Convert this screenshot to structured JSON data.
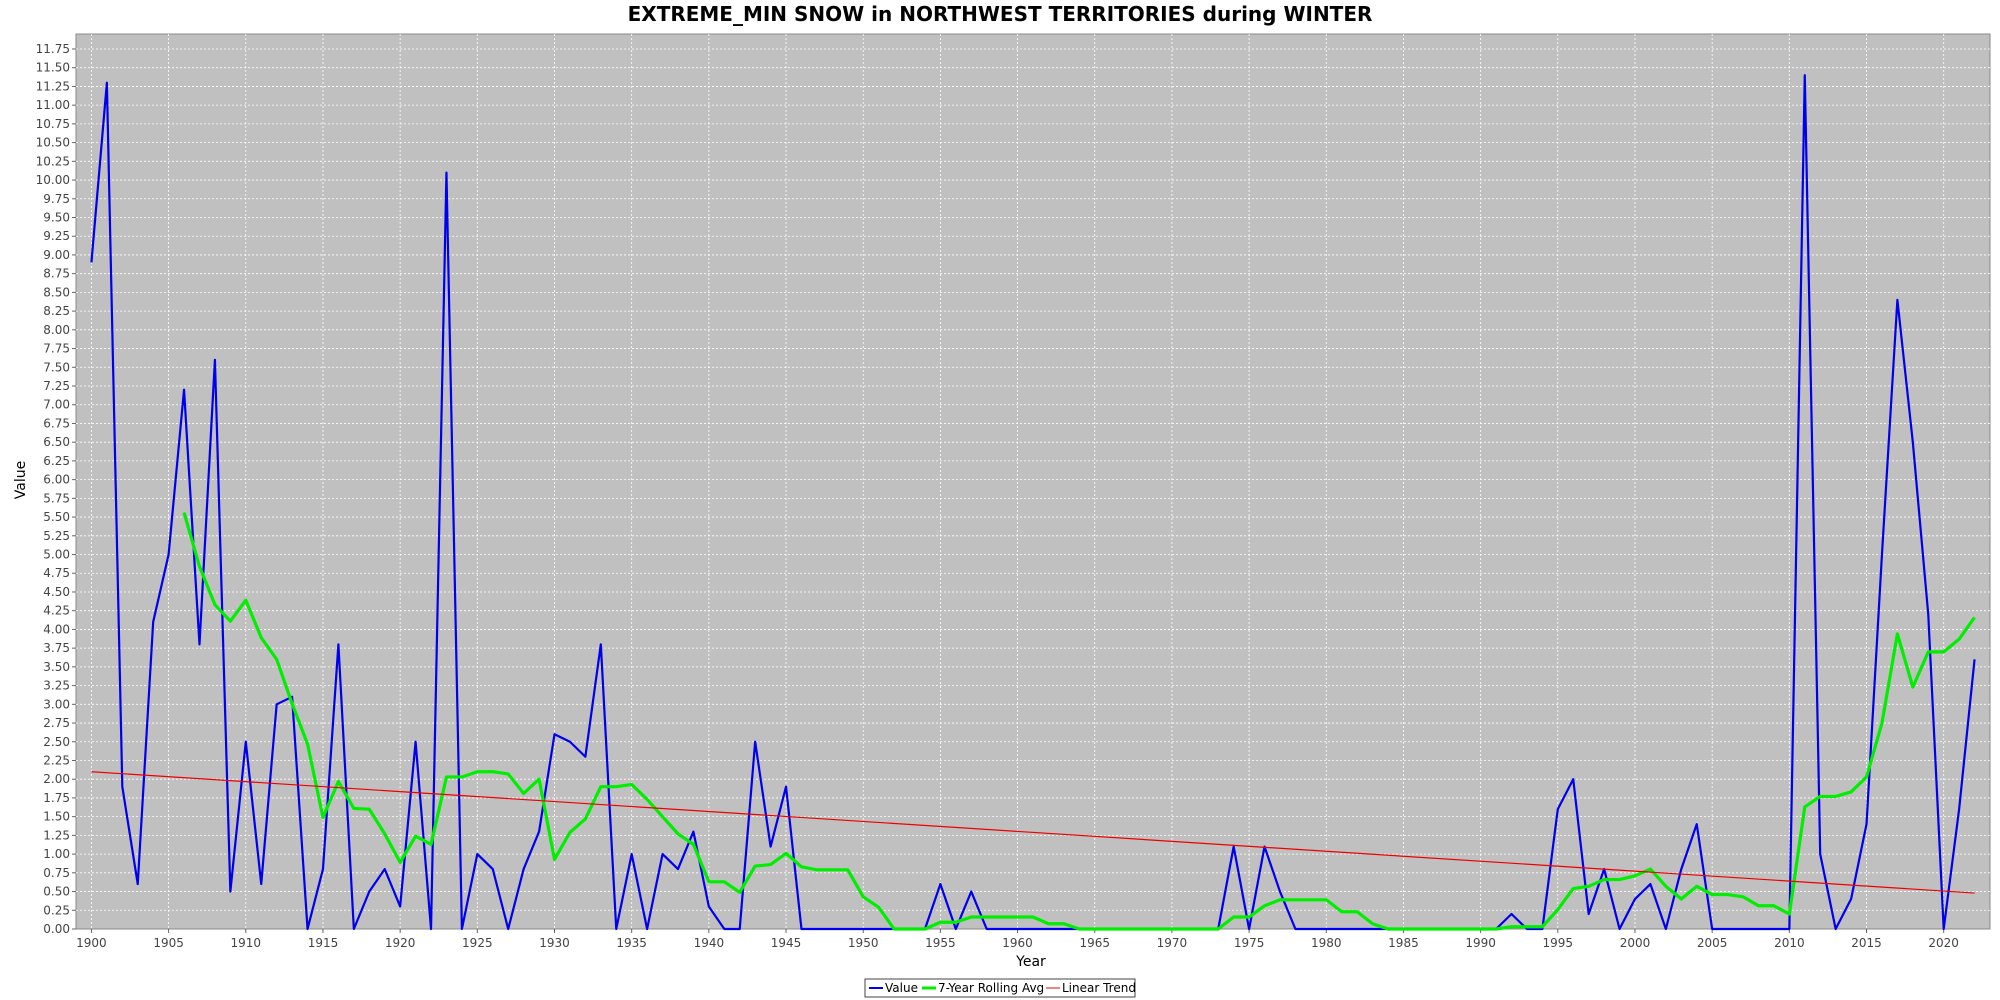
{
  "chart_data": {
    "type": "line",
    "title": "EXTREME_MIN SNOW in NORTHWEST TERRITORIES during WINTER",
    "xlabel": "Year",
    "ylabel": "Value",
    "xlim": [
      1899,
      2023
    ],
    "ylim": [
      0,
      11.95
    ],
    "x_ticks": [
      1900,
      1905,
      1910,
      1915,
      1920,
      1925,
      1930,
      1935,
      1940,
      1945,
      1950,
      1955,
      1960,
      1965,
      1970,
      1975,
      1980,
      1985,
      1990,
      1995,
      2000,
      2005,
      2010,
      2015,
      2020
    ],
    "y_ticks": [
      "0.00",
      "0.25",
      "0.50",
      "0.75",
      "1.00",
      "1.25",
      "1.50",
      "1.75",
      "2.00",
      "2.25",
      "2.50",
      "2.75",
      "3.00",
      "3.25",
      "3.50",
      "3.75",
      "4.00",
      "4.25",
      "4.50",
      "4.75",
      "5.00",
      "5.25",
      "5.50",
      "5.75",
      "6.00",
      "6.25",
      "6.50",
      "6.75",
      "7.00",
      "7.25",
      "7.50",
      "7.75",
      "8.00",
      "8.25",
      "8.50",
      "8.75",
      "9.00",
      "9.25",
      "9.50",
      "9.75",
      "10.00",
      "10.25",
      "10.50",
      "10.75",
      "11.00",
      "11.25",
      "11.50",
      "11.75"
    ],
    "grid": true,
    "legend_position": "bottom-center",
    "series": [
      {
        "name": "Value",
        "color": "#0000ee",
        "x": [
          1900,
          1901,
          1902,
          1903,
          1904,
          1905,
          1906,
          1907,
          1908,
          1909,
          1910,
          1911,
          1912,
          1913,
          1914,
          1915,
          1916,
          1917,
          1918,
          1919,
          1920,
          1921,
          1922,
          1923,
          1924,
          1925,
          1926,
          1927,
          1928,
          1929,
          1930,
          1931,
          1932,
          1933,
          1934,
          1935,
          1936,
          1937,
          1938,
          1939,
          1940,
          1941,
          1942,
          1943,
          1944,
          1945,
          1946,
          1947,
          1948,
          1949,
          1950,
          1951,
          1952,
          1953,
          1954,
          1955,
          1956,
          1957,
          1958,
          1959,
          1960,
          1961,
          1962,
          1963,
          1964,
          1965,
          1966,
          1967,
          1968,
          1969,
          1970,
          1971,
          1972,
          1973,
          1974,
          1975,
          1976,
          1977,
          1978,
          1979,
          1980,
          1981,
          1982,
          1983,
          1984,
          1985,
          1986,
          1987,
          1988,
          1989,
          1990,
          1991,
          1992,
          1993,
          1994,
          1995,
          1996,
          1997,
          1998,
          1999,
          2000,
          2001,
          2002,
          2003,
          2004,
          2005,
          2006,
          2007,
          2008,
          2009,
          2010,
          2011,
          2012,
          2013,
          2014,
          2015,
          2016,
          2017,
          2018,
          2019,
          2020,
          2021,
          2022
        ],
        "values": [
          8.9,
          11.3,
          1.9,
          0.6,
          4.1,
          5.0,
          7.2,
          3.8,
          7.6,
          0.5,
          2.5,
          0.6,
          3.0,
          3.1,
          0.0,
          0.8,
          3.8,
          0.0,
          0.5,
          0.8,
          0.3,
          2.5,
          0.0,
          10.1,
          0.0,
          1.0,
          0.8,
          0.0,
          0.8,
          1.3,
          2.6,
          2.5,
          2.3,
          3.8,
          0.0,
          1.0,
          0.0,
          1.0,
          0.8,
          1.3,
          0.3,
          0.0,
          0.0,
          2.5,
          1.1,
          1.9,
          0.0,
          0.0,
          0.0,
          0.0,
          0.0,
          0.0,
          0.0,
          0.0,
          0.0,
          0.6,
          0.0,
          0.5,
          0.0,
          0.0,
          0.0,
          0.0,
          0.0,
          0.0,
          0.0,
          0.0,
          0.0,
          0.0,
          0.0,
          0.0,
          0.0,
          0.0,
          0.0,
          0.0,
          1.1,
          0.0,
          1.1,
          0.5,
          0.0,
          0.0,
          0.0,
          0.0,
          0.0,
          0.0,
          0.0,
          0.0,
          0.0,
          0.0,
          0.0,
          0.0,
          0.0,
          0.0,
          0.2,
          0.0,
          0.0,
          1.6,
          2.0,
          0.2,
          0.8,
          0.0,
          0.4,
          0.6,
          0.0,
          0.8,
          1.4,
          0.0,
          0.0,
          0.0,
          0.0,
          0.0,
          0.0,
          11.4,
          1.0,
          0.0,
          0.4,
          1.4,
          5.0,
          8.4,
          6.5,
          4.2,
          0.0,
          1.6,
          3.6
        ]
      },
      {
        "name": "7-Year Rolling Avg",
        "color": "#00ee00",
        "x": [
          1906,
          1907,
          1908,
          1909,
          1910,
          1911,
          1912,
          1913,
          1914,
          1915,
          1916,
          1917,
          1918,
          1919,
          1920,
          1921,
          1922,
          1923,
          1924,
          1925,
          1926,
          1927,
          1928,
          1929,
          1930,
          1931,
          1932,
          1933,
          1934,
          1935,
          1936,
          1937,
          1938,
          1939,
          1940,
          1941,
          1942,
          1943,
          1944,
          1945,
          1946,
          1947,
          1948,
          1949,
          1950,
          1951,
          1952,
          1953,
          1954,
          1955,
          1956,
          1957,
          1958,
          1959,
          1960,
          1961,
          1962,
          1963,
          1964,
          1965,
          1966,
          1967,
          1968,
          1969,
          1970,
          1971,
          1972,
          1973,
          1974,
          1975,
          1976,
          1977,
          1978,
          1979,
          1980,
          1981,
          1982,
          1983,
          1984,
          1985,
          1986,
          1987,
          1988,
          1989,
          1990,
          1991,
          1992,
          1993,
          1994,
          1995,
          1996,
          1997,
          1998,
          1999,
          2000,
          2001,
          2002,
          2003,
          2004,
          2005,
          2006,
          2007,
          2008,
          2009,
          2010,
          2011,
          2012,
          2013,
          2014,
          2015,
          2016,
          2017,
          2018,
          2019,
          2020,
          2021,
          2022
        ],
        "values": [
          5.56,
          4.84,
          4.33,
          4.11,
          4.39,
          3.89,
          3.6,
          3.01,
          2.47,
          1.49,
          1.97,
          1.61,
          1.6,
          1.27,
          0.89,
          1.24,
          1.13,
          2.03,
          2.03,
          2.1,
          2.1,
          2.07,
          1.81,
          2.0,
          0.93,
          1.29,
          1.47,
          1.9,
          1.9,
          1.93,
          1.73,
          1.5,
          1.27,
          1.13,
          0.63,
          0.63,
          0.49,
          0.84,
          0.86,
          1.01,
          0.83,
          0.79,
          0.79,
          0.79,
          0.43,
          0.29,
          0.0,
          0.0,
          0.0,
          0.09,
          0.09,
          0.16,
          0.16,
          0.16,
          0.16,
          0.16,
          0.07,
          0.07,
          0.0,
          0.0,
          0.0,
          0.0,
          0.0,
          0.0,
          0.0,
          0.0,
          0.0,
          0.0,
          0.16,
          0.16,
          0.31,
          0.39,
          0.39,
          0.39,
          0.39,
          0.23,
          0.23,
          0.07,
          0.0,
          0.0,
          0.0,
          0.0,
          0.0,
          0.0,
          0.0,
          0.0,
          0.03,
          0.03,
          0.03,
          0.26,
          0.54,
          0.57,
          0.66,
          0.66,
          0.71,
          0.8,
          0.57,
          0.4,
          0.57,
          0.46,
          0.46,
          0.43,
          0.31,
          0.31,
          0.2,
          1.63,
          1.77,
          1.77,
          1.83,
          2.03,
          2.75,
          3.94,
          3.23,
          3.7,
          3.7,
          3.87,
          4.16
        ]
      },
      {
        "name": "Linear Trend",
        "color": "#ee0000",
        "x": [
          1900,
          2022
        ],
        "values": [
          2.1,
          0.48
        ]
      }
    ]
  }
}
